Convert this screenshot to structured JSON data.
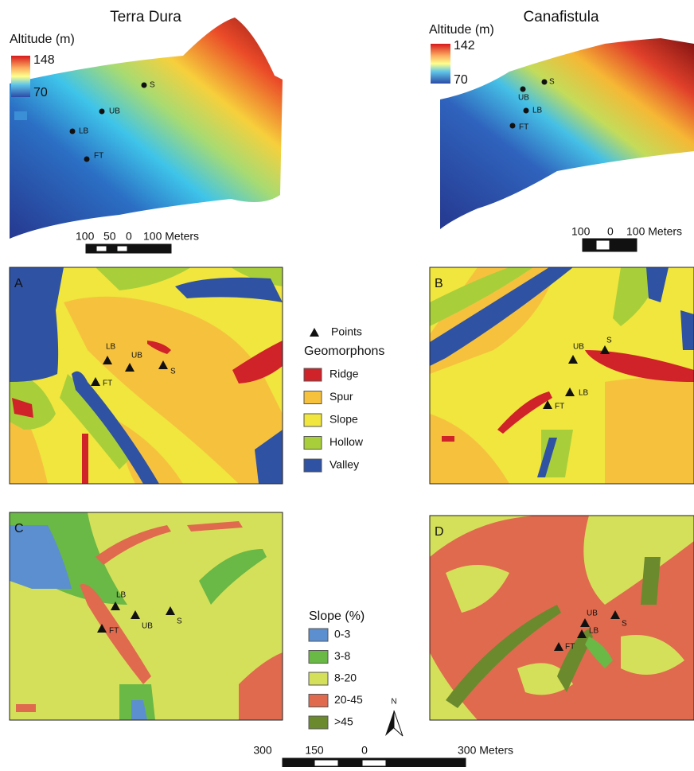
{
  "terrain_maps": [
    {
      "title": "Terra Dura",
      "legend_title": "Altitude (m)",
      "legend_max": 148,
      "legend_min": 70,
      "points": [
        "S",
        "UB",
        "LB",
        "FT"
      ],
      "scale": [
        "100",
        "50",
        "0",
        "100 Meters"
      ]
    },
    {
      "title": "Canafistula",
      "legend_title": "Altitude (m)",
      "legend_max": 142,
      "legend_min": 70,
      "points": [
        "S",
        "UB",
        "LB",
        "FT"
      ],
      "scale": [
        "100",
        "0",
        "100 Meters"
      ]
    }
  ],
  "panels": [
    {
      "letter": "A",
      "points": [
        "LB",
        "UB",
        "S",
        "FT"
      ]
    },
    {
      "letter": "B",
      "points": [
        "UB",
        "S",
        "LB",
        "FT"
      ]
    },
    {
      "letter": "C",
      "points": [
        "LB",
        "UB",
        "S",
        "FT"
      ]
    },
    {
      "letter": "D",
      "points": [
        "UB",
        "S",
        "LB",
        "FT"
      ]
    }
  ],
  "geomorphons_legend": {
    "points_label": "Points",
    "title": "Geomorphons",
    "classes": [
      "Ridge",
      "Spur",
      "Slope",
      "Hollow",
      "Valley"
    ]
  },
  "slope_legend": {
    "title": "Slope (%)",
    "classes": [
      "0-3",
      "3-8",
      "8-20",
      "20-45",
      ">45"
    ]
  },
  "north_label": "N",
  "bottom_scale": [
    "300",
    "150",
    "0",
    "300 Meters"
  ]
}
